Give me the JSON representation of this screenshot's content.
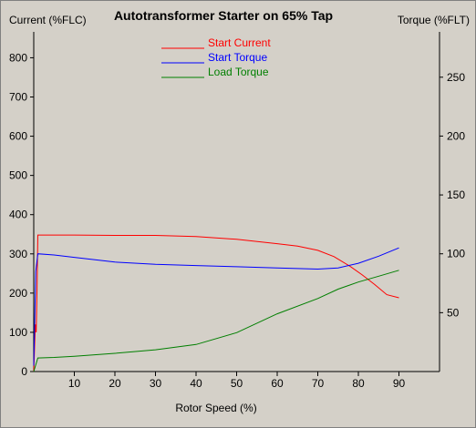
{
  "chart_data": {
    "type": "line",
    "title": "Autotransformer Starter on 65% Tap",
    "xlabel": "Rotor Speed (%)",
    "ylabel_left": "Current (%FLC)",
    "ylabel_right": "Torque (%FLT)",
    "xlim": [
      0,
      100
    ],
    "ylim_left": [
      0,
      866
    ],
    "ylim_right": [
      0,
      288.5
    ],
    "x_ticks": [
      "10",
      "20",
      "30",
      "40",
      "50",
      "60",
      "70",
      "80",
      "90"
    ],
    "x_tick_values": [
      10,
      20,
      30,
      40,
      50,
      60,
      70,
      80,
      90
    ],
    "y_left_ticks": [
      "0",
      "100",
      "200",
      "300",
      "400",
      "500",
      "600",
      "700",
      "800"
    ],
    "y_left_tick_values": [
      0,
      100,
      200,
      300,
      400,
      500,
      600,
      700,
      800
    ],
    "y_right_ticks": [
      "50",
      "100",
      "150",
      "200",
      "250"
    ],
    "y_right_tick_values": [
      50,
      100,
      150,
      200,
      250
    ],
    "grid": false,
    "legend_position": "top-center",
    "series": [
      {
        "name": "Start Current",
        "color": "#ff0000",
        "axis": "left",
        "x": [
          0,
          0.4,
          0.6,
          0.8,
          1,
          5,
          10,
          20,
          30,
          40,
          50,
          60,
          65,
          70,
          74,
          78,
          81,
          84,
          87,
          90
        ],
        "y": [
          0,
          120,
          100,
          210,
          348,
          348,
          348,
          347,
          347,
          344,
          337,
          326,
          320,
          309,
          293,
          268,
          246,
          222,
          196,
          188
        ]
      },
      {
        "name": "Start Torque",
        "color": "#0000ff",
        "axis": "right",
        "x": [
          0,
          0.5,
          1,
          5,
          10,
          20,
          30,
          40,
          50,
          60,
          65,
          70,
          75,
          80,
          85,
          90
        ],
        "y": [
          5,
          85,
          100,
          99,
          97,
          93,
          91,
          90,
          89,
          88,
          87.5,
          87,
          88,
          92,
          98,
          105
        ]
      },
      {
        "name": "Load Torque",
        "color": "#007f00",
        "axis": "right",
        "x": [
          0,
          1,
          5,
          10,
          20,
          30,
          40,
          50,
          60,
          70,
          75,
          80,
          85,
          90
        ],
        "y": [
          0,
          11.5,
          12,
          13,
          15.5,
          18.5,
          23,
          33,
          49,
          62,
          70,
          76,
          81,
          86
        ]
      }
    ]
  }
}
